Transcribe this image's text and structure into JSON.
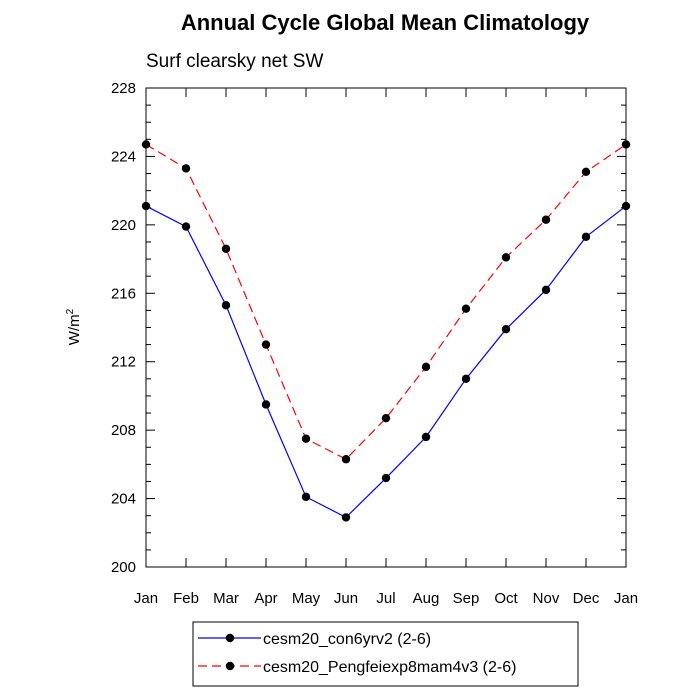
{
  "chart_data": {
    "type": "line",
    "title": "Annual Cycle Global Mean Climatology",
    "subtitle": "Surf clearsky net SW",
    "ylabel_base": "W/m",
    "ylabel_sup": "2",
    "xlabel": "",
    "categories": [
      "Jan",
      "Feb",
      "Mar",
      "Apr",
      "May",
      "Jun",
      "Jul",
      "Aug",
      "Sep",
      "Oct",
      "Nov",
      "Dec",
      "Jan"
    ],
    "ylim": [
      200,
      228
    ],
    "yticks": [
      200,
      204,
      208,
      212,
      216,
      220,
      224,
      228
    ],
    "grid": false,
    "legend_position": "bottom",
    "series": [
      {
        "name": "cesm20_con6yrv2 (2-6)",
        "color": "#0000ff",
        "dash": "solid",
        "values": [
          221.1,
          219.9,
          215.3,
          209.5,
          204.1,
          202.9,
          205.2,
          207.6,
          211.0,
          213.9,
          216.2,
          219.3,
          221.1
        ]
      },
      {
        "name": "cesm20_Pengfeiexp8mam4v3 (2-6)",
        "color": "#ff0000",
        "dash": "dashed",
        "values": [
          224.7,
          223.3,
          218.6,
          213.0,
          207.5,
          206.3,
          208.7,
          211.7,
          215.1,
          218.1,
          220.3,
          223.1,
          224.7
        ]
      }
    ]
  }
}
